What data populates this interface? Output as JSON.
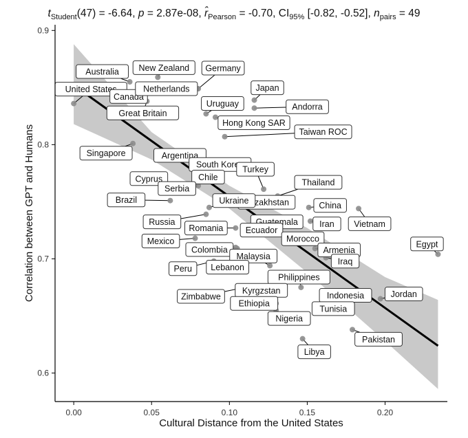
{
  "chart_data": {
    "type": "scatter",
    "title_parts": {
      "t_symbol": "t",
      "t_sub": "Student",
      "t_stat": "(47) = -6.64, ",
      "p_symbol": "p",
      "p_stat": " = 2.87e-08, ",
      "r_symbol": "r̂",
      "r_sub": "Pearson",
      "r_stat": " = -0.70, CI",
      "ci_sub": "95%",
      "ci_stat": " [-0.82, -0.52], ",
      "n_symbol": "n",
      "n_sub": "pairs",
      "n_stat": " = 49"
    },
    "xlabel": "Cultural Distance from the United States",
    "ylabel": "Correlation between GPT and Humans",
    "xlim": [
      -0.012,
      0.24
    ],
    "ylim": [
      0.575,
      0.905
    ],
    "x_ticks": [
      0.0,
      0.05,
      0.1,
      0.15,
      0.2
    ],
    "x_tick_labels": [
      "0.00",
      "0.05",
      "0.10",
      "0.15",
      "0.20"
    ],
    "y_ticks": [
      0.6,
      0.7,
      0.8,
      0.9
    ],
    "y_tick_labels": [
      "0.6",
      "0.7",
      "0.8",
      "0.9"
    ],
    "regression": {
      "intercept": 0.852,
      "slope": -0.975,
      "x_range": [
        0.0,
        0.234
      ]
    },
    "ci_band": {
      "x": [
        0.0,
        0.05,
        0.1,
        0.15,
        0.2,
        0.234
      ],
      "lower": [
        0.818,
        0.787,
        0.744,
        0.688,
        0.628,
        0.586
      ],
      "upper": [
        0.888,
        0.811,
        0.764,
        0.727,
        0.684,
        0.664
      ]
    },
    "points": [
      {
        "name": "United States",
        "x": 0.0,
        "y": 0.836
      },
      {
        "name": "Canada",
        "x": 0.026,
        "y": 0.844
      },
      {
        "name": "Australia",
        "x": 0.036,
        "y": 0.855
      },
      {
        "name": "New Zealand",
        "x": 0.054,
        "y": 0.859
      },
      {
        "name": "Germany",
        "x": 0.08,
        "y": 0.849
      },
      {
        "name": "Netherlands",
        "x": 0.079,
        "y": 0.849
      },
      {
        "name": "Great Britain",
        "x": 0.047,
        "y": 0.838
      },
      {
        "name": "Japan",
        "x": 0.116,
        "y": 0.839
      },
      {
        "name": "Andorra",
        "x": 0.116,
        "y": 0.832
      },
      {
        "name": "Uruguay",
        "x": 0.085,
        "y": 0.827
      },
      {
        "name": "Hong Kong SAR",
        "x": 0.091,
        "y": 0.824
      },
      {
        "name": "Taiwan ROC",
        "x": 0.097,
        "y": 0.807
      },
      {
        "name": "Singapore",
        "x": 0.038,
        "y": 0.801
      },
      {
        "name": "Argentina",
        "x": 0.07,
        "y": 0.79
      },
      {
        "name": "South Korea",
        "x": 0.094,
        "y": 0.779
      },
      {
        "name": "Chile",
        "x": 0.085,
        "y": 0.774
      },
      {
        "name": "Turkey",
        "x": 0.122,
        "y": 0.761
      },
      {
        "name": "Thailand",
        "x": 0.131,
        "y": 0.755
      },
      {
        "name": "Cyprus",
        "x": 0.058,
        "y": 0.763
      },
      {
        "name": "Kazakhstan",
        "x": 0.115,
        "y": 0.752
      },
      {
        "name": "Serbia",
        "x": 0.08,
        "y": 0.764
      },
      {
        "name": "Brazil",
        "x": 0.062,
        "y": 0.751
      },
      {
        "name": "China",
        "x": 0.151,
        "y": 0.745
      },
      {
        "name": "Ukraine",
        "x": 0.087,
        "y": 0.745
      },
      {
        "name": "Vietnam",
        "x": 0.183,
        "y": 0.744
      },
      {
        "name": "Guatemala",
        "x": 0.134,
        "y": 0.733
      },
      {
        "name": "Iran",
        "x": 0.152,
        "y": 0.733
      },
      {
        "name": "Russia",
        "x": 0.085,
        "y": 0.739
      },
      {
        "name": "Romania",
        "x": 0.104,
        "y": 0.727
      },
      {
        "name": "Ecuador",
        "x": 0.114,
        "y": 0.727
      },
      {
        "name": "Morocco",
        "x": 0.137,
        "y": 0.72
      },
      {
        "name": "Mexico",
        "x": 0.078,
        "y": 0.718
      },
      {
        "name": "Armenia",
        "x": 0.155,
        "y": 0.709
      },
      {
        "name": "Colombia",
        "x": 0.104,
        "y": 0.71
      },
      {
        "name": "Malaysia",
        "x": 0.126,
        "y": 0.694
      },
      {
        "name": "Egypt",
        "x": 0.234,
        "y": 0.704
      },
      {
        "name": "Iraq",
        "x": 0.162,
        "y": 0.701
      },
      {
        "name": "Peru",
        "x": 0.09,
        "y": 0.698
      },
      {
        "name": "Lebanon",
        "x": 0.105,
        "y": 0.709
      },
      {
        "name": "Philippines",
        "x": 0.146,
        "y": 0.675
      },
      {
        "name": "Kyrgzstan",
        "x": 0.132,
        "y": 0.673
      },
      {
        "name": "Zimbabwe",
        "x": 0.11,
        "y": 0.675
      },
      {
        "name": "Jordan",
        "x": 0.197,
        "y": 0.665
      },
      {
        "name": "Indonesia",
        "x": 0.179,
        "y": 0.665
      },
      {
        "name": "Ethiopia",
        "x": 0.13,
        "y": 0.661
      },
      {
        "name": "Tunisia",
        "x": 0.157,
        "y": 0.66
      },
      {
        "name": "Nigeria",
        "x": 0.13,
        "y": 0.655
      },
      {
        "name": "Pakistan",
        "x": 0.179,
        "y": 0.638
      },
      {
        "name": "Libya",
        "x": 0.147,
        "y": 0.63
      }
    ]
  },
  "colors": {
    "point": "#8c8c8c",
    "regression_line": "#000000",
    "ci_band": "#c9c9c9",
    "label_border": "#333333",
    "axis": "#000000"
  }
}
